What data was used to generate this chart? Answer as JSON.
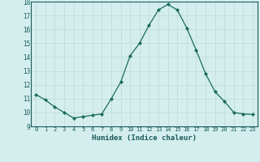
{
  "x": [
    0,
    1,
    2,
    3,
    4,
    5,
    6,
    7,
    8,
    9,
    10,
    11,
    12,
    13,
    14,
    15,
    16,
    17,
    18,
    19,
    20,
    21,
    22,
    23
  ],
  "y": [
    11.3,
    10.9,
    10.4,
    10.0,
    9.6,
    9.7,
    9.8,
    9.9,
    11.0,
    12.2,
    14.1,
    15.0,
    16.3,
    17.4,
    17.8,
    17.4,
    16.1,
    14.5,
    12.8,
    11.5,
    10.8,
    10.0,
    9.9,
    9.85
  ],
  "xlabel": "Humidex (Indice chaleur)",
  "ylim": [
    9,
    18
  ],
  "xlim": [
    -0.5,
    23.5
  ],
  "yticks": [
    9,
    10,
    11,
    12,
    13,
    14,
    15,
    16,
    17,
    18
  ],
  "xticks": [
    0,
    1,
    2,
    3,
    4,
    5,
    6,
    7,
    8,
    9,
    10,
    11,
    12,
    13,
    14,
    15,
    16,
    17,
    18,
    19,
    20,
    21,
    22,
    23
  ],
  "line_color": "#1a6b5a",
  "marker_color": "#1a6b5a",
  "bg_color": "#d4eeee",
  "grid_color": "#c0dcdc",
  "title": ""
}
